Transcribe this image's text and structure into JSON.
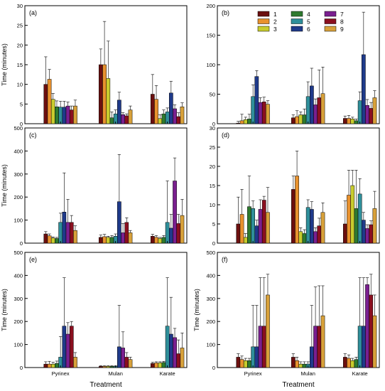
{
  "colors": [
    "#6b0f0f",
    "#e8922e",
    "#c8cc2e",
    "#2f7a2f",
    "#2f8f9a",
    "#1f3a8a",
    "#7a1f8f",
    "#8a0f1f",
    "#d8a13a"
  ],
  "legend": {
    "labels": [
      "1",
      "2",
      "3",
      "4",
      "5",
      "6",
      "7",
      "8",
      "9"
    ]
  },
  "chart_data": [
    {
      "type": "bar",
      "panel_label": "(a)",
      "ylabel": "Time (minutes)",
      "ylim": [
        0,
        30
      ],
      "yticks": [
        "0",
        "5",
        "10",
        "15",
        "20",
        "25",
        "30"
      ],
      "xticks": [
        "",
        "",
        ""
      ],
      "xlabel": "",
      "categories": [
        "Pyrinex",
        "Mulan",
        "Karate"
      ],
      "series": [
        {
          "name": "1",
          "values": [
            10,
            15,
            7.5
          ],
          "errors": [
            7,
            4,
            5
          ]
        },
        {
          "name": "2",
          "values": [
            11.3,
            15,
            6.2
          ],
          "errors": [
            2.5,
            11,
            3.5
          ]
        },
        {
          "name": "3",
          "values": [
            6.2,
            11.5,
            1.3
          ],
          "errors": [
            1.5,
            9.5,
            1
          ]
        },
        {
          "name": "4",
          "values": [
            4.3,
            1.5,
            2.5
          ],
          "errors": [
            1.5,
            1.5,
            1
          ]
        },
        {
          "name": "5",
          "values": [
            4.2,
            2.5,
            3
          ],
          "errors": [
            1.5,
            1,
            1
          ]
        },
        {
          "name": "6",
          "values": [
            4.2,
            6,
            7.8
          ],
          "errors": [
            1.5,
            2,
            3
          ]
        },
        {
          "name": "7",
          "values": [
            4.5,
            2.3,
            3.8
          ],
          "errors": [
            1,
            0.5,
            1
          ]
        },
        {
          "name": "8",
          "values": [
            3.5,
            2,
            1.8
          ],
          "errors": [
            1,
            0.5,
            1
          ]
        },
        {
          "name": "9",
          "values": [
            4.5,
            3.5,
            4.3
          ],
          "errors": [
            1.5,
            1,
            1
          ]
        }
      ]
    },
    {
      "type": "bar",
      "panel_label": "(b)",
      "ylabel": "",
      "ylim": [
        0,
        200
      ],
      "yticks": [
        "0",
        "50",
        "100",
        "150",
        "200"
      ],
      "xticks": [
        "",
        "",
        ""
      ],
      "xlabel": "",
      "categories": [
        "Pyrinex",
        "Mulan",
        "Karate"
      ],
      "series": [
        {
          "name": "1",
          "values": [
            1,
            10,
            9
          ],
          "errors": [
            3,
            5,
            4
          ]
        },
        {
          "name": "2",
          "values": [
            5,
            12,
            9
          ],
          "errors": [
            11,
            10,
            5
          ]
        },
        {
          "name": "3",
          "values": [
            7,
            15,
            8
          ],
          "errors": [
            4,
            5,
            3
          ]
        },
        {
          "name": "4",
          "values": [
            8,
            15,
            5
          ],
          "errors": [
            8,
            10,
            3
          ]
        },
        {
          "name": "5",
          "values": [
            46,
            46,
            39
          ],
          "errors": [
            20,
            25,
            15
          ]
        },
        {
          "name": "6",
          "values": [
            80,
            64,
            117
          ],
          "errors": [
            10,
            30,
            72
          ]
        },
        {
          "name": "7",
          "values": [
            36,
            32,
            31
          ],
          "errors": [
            8,
            10,
            10
          ]
        },
        {
          "name": "8",
          "values": [
            37,
            44,
            26
          ],
          "errors": [
            8,
            47,
            10
          ]
        },
        {
          "name": "9",
          "values": [
            33,
            51,
            44
          ],
          "errors": [
            6,
            45,
            12
          ]
        }
      ]
    },
    {
      "type": "bar",
      "panel_label": "(c)",
      "ylabel": "Time (minutes)",
      "ylim": [
        0,
        500
      ],
      "yticks": [
        "0",
        "100",
        "200",
        "300",
        "400",
        "500"
      ],
      "xticks": [
        "",
        "",
        ""
      ],
      "xlabel": "",
      "categories": [
        "Pyrinex",
        "Mulan",
        "Karate"
      ],
      "series": [
        {
          "name": "1",
          "values": [
            40,
            25,
            30
          ],
          "errors": [
            10,
            10,
            8
          ]
        },
        {
          "name": "2",
          "values": [
            32,
            28,
            25
          ],
          "errors": [
            8,
            10,
            8
          ]
        },
        {
          "name": "3",
          "values": [
            22,
            25,
            20
          ],
          "errors": [
            5,
            5,
            5
          ]
        },
        {
          "name": "4",
          "values": [
            20,
            25,
            25
          ],
          "errors": [
            5,
            8,
            8
          ]
        },
        {
          "name": "5",
          "values": [
            90,
            30,
            90
          ],
          "errors": [
            40,
            10,
            180
          ]
        },
        {
          "name": "6",
          "values": [
            135,
            180,
            65
          ],
          "errors": [
            170,
            205,
            60
          ]
        },
        {
          "name": "7",
          "values": [
            90,
            45,
            270
          ],
          "errors": [
            100,
            40,
            100
          ]
        },
        {
          "name": "8",
          "values": [
            90,
            90,
            85
          ],
          "errors": [
            30,
            20,
            40
          ]
        },
        {
          "name": "9",
          "values": [
            55,
            45,
            120
          ],
          "errors": [
            20,
            10,
            70
          ]
        }
      ]
    },
    {
      "type": "bar",
      "panel_label": "(d)",
      "ylabel": "",
      "ylim": [
        0,
        30
      ],
      "yticks": [
        "0",
        "5",
        "10",
        "15",
        "20",
        "25",
        "30"
      ],
      "xticks": [
        "",
        "",
        ""
      ],
      "xlabel": "",
      "categories": [
        "Pyrinex",
        "Mulan",
        "Karate"
      ],
      "series": [
        {
          "name": "1",
          "values": [
            5,
            14,
            5
          ],
          "errors": [
            7,
            3.5,
            6
          ]
        },
        {
          "name": "2",
          "values": [
            7.5,
            17.5,
            12.5
          ],
          "errors": [
            6.5,
            6.5,
            6.5
          ]
        },
        {
          "name": "3",
          "values": [
            1.5,
            3,
            15
          ],
          "errors": [
            1,
            1,
            4
          ]
        },
        {
          "name": "4",
          "values": [
            9.5,
            2.5,
            9
          ],
          "errors": [
            8,
            1,
            10
          ]
        },
        {
          "name": "5",
          "values": [
            9,
            9.3,
            12.8
          ],
          "errors": [
            2,
            2,
            4
          ]
        },
        {
          "name": "6",
          "values": [
            4.5,
            8.8,
            6
          ],
          "errors": [
            1.5,
            2,
            2
          ]
        },
        {
          "name": "7",
          "values": [
            8.8,
            3,
            3.8
          ],
          "errors": [
            2.5,
            1,
            1
          ]
        },
        {
          "name": "8",
          "values": [
            11.2,
            4.5,
            4.8
          ],
          "errors": [
            1,
            2,
            1
          ]
        },
        {
          "name": "9",
          "values": [
            8,
            8,
            9
          ],
          "errors": [
            6.5,
            2.5,
            4.5
          ]
        }
      ]
    },
    {
      "type": "bar",
      "panel_label": "(e)",
      "ylabel": "Time (minutes)",
      "ylim": [
        0,
        500
      ],
      "yticks": [
        "0",
        "100",
        "200",
        "300",
        "400",
        "500"
      ],
      "xticks": [
        "Pyrinex",
        "Mulan",
        "Karate"
      ],
      "xlabel": "Treatment",
      "categories": [
        "Pyrinex",
        "Mulan",
        "Karate"
      ],
      "series": [
        {
          "name": "1",
          "values": [
            15,
            5,
            18
          ],
          "errors": [
            10,
            3,
            5
          ]
        },
        {
          "name": "2",
          "values": [
            15,
            5,
            20
          ],
          "errors": [
            12,
            3,
            5
          ]
        },
        {
          "name": "3",
          "values": [
            15,
            5,
            20
          ],
          "errors": [
            8,
            3,
            5
          ]
        },
        {
          "name": "4",
          "values": [
            18,
            5,
            22
          ],
          "errors": [
            10,
            3,
            5
          ]
        },
        {
          "name": "5",
          "values": [
            45,
            5,
            180
          ],
          "errors": [
            90,
            3,
            210
          ]
        },
        {
          "name": "6",
          "values": [
            180,
            90,
            145
          ],
          "errors": [
            210,
            180,
            160
          ]
        },
        {
          "name": "7",
          "values": [
            145,
            85,
            130
          ],
          "errors": [
            50,
            70,
            40
          ]
        },
        {
          "name": "8",
          "values": [
            180,
            45,
            60
          ],
          "errors": [
            20,
            20,
            60
          ]
        },
        {
          "name": "9",
          "values": [
            45,
            35,
            85
          ],
          "errors": [
            20,
            10,
            65
          ]
        }
      ]
    },
    {
      "type": "bar",
      "panel_label": "(f)",
      "ylabel": "Time (minutes)",
      "ylim": [
        0,
        500
      ],
      "yticks": [
        "0",
        "100",
        "200",
        "300",
        "400",
        "500"
      ],
      "xticks": [
        "Pyrinex",
        "Mulan",
        "Karate"
      ],
      "xlabel": "Treatment",
      "categories": [
        "Pyrinex",
        "Mulan",
        "Karate"
      ],
      "series": [
        {
          "name": "1",
          "values": [
            45,
            45,
            45
          ],
          "errors": [
            15,
            15,
            15
          ]
        },
        {
          "name": "2",
          "values": [
            35,
            30,
            40
          ],
          "errors": [
            15,
            15,
            15
          ]
        },
        {
          "name": "3",
          "values": [
            30,
            15,
            30
          ],
          "errors": [
            10,
            10,
            10
          ]
        },
        {
          "name": "4",
          "values": [
            30,
            15,
            35
          ],
          "errors": [
            10,
            10,
            10
          ]
        },
        {
          "name": "5",
          "values": [
            90,
            15,
            180
          ],
          "errors": [
            180,
            10,
            210
          ]
        },
        {
          "name": "6",
          "values": [
            90,
            90,
            180
          ],
          "errors": [
            180,
            180,
            210
          ]
        },
        {
          "name": "7",
          "values": [
            180,
            180,
            360
          ],
          "errors": [
            210,
            170,
            30
          ]
        },
        {
          "name": "8",
          "values": [
            180,
            180,
            315
          ],
          "errors": [
            210,
            175,
            90
          ]
        },
        {
          "name": "9",
          "values": [
            315,
            225,
            225
          ],
          "errors": [
            90,
            130,
            90
          ]
        }
      ]
    }
  ]
}
